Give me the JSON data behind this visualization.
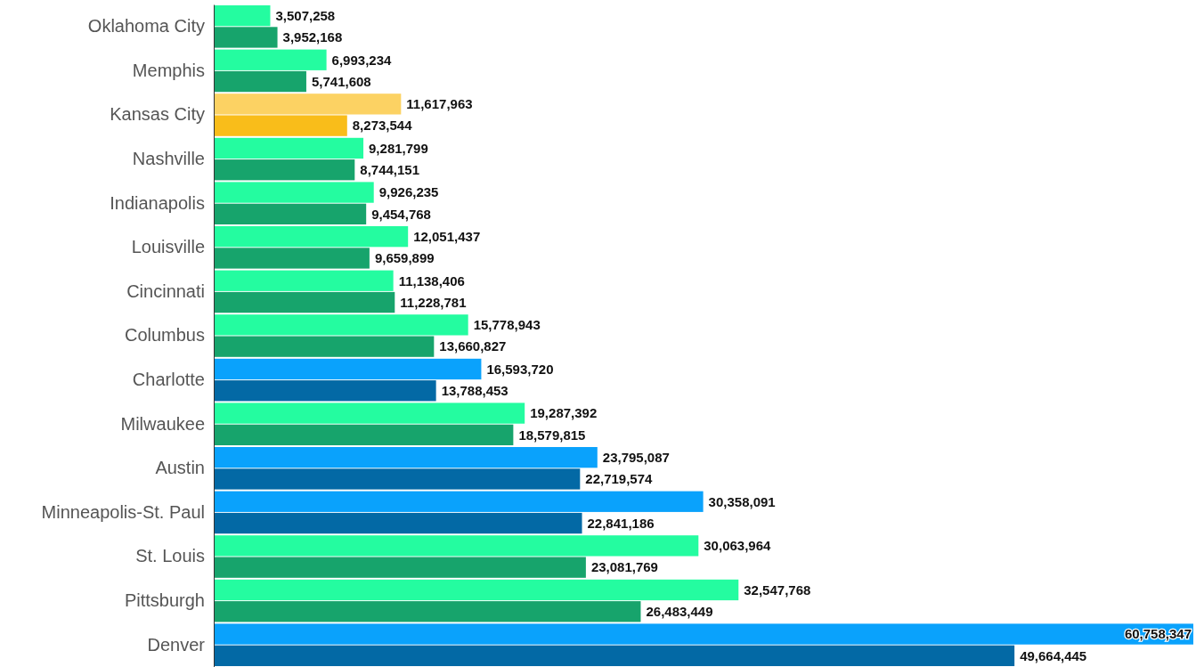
{
  "chart_data": {
    "type": "bar",
    "orientation": "horizontal",
    "categories": [
      "Oklahoma City",
      "Memphis",
      "Kansas City",
      "Nashville",
      "Indianapolis",
      "Louisville",
      "Cincinnati",
      "Columbus",
      "Charlotte",
      "Milwaukee",
      "Austin",
      "Minneapolis-St. Paul",
      "St. Louis",
      "Pittsburgh",
      "Denver"
    ],
    "series": [
      {
        "colors": [
          "#24fca0",
          "#24fca0",
          "#fcd263",
          "#24fca0",
          "#24fca0",
          "#24fca0",
          "#24fca0",
          "#24fca0",
          "#0aa2fc",
          "#24fca0",
          "#0aa2fc",
          "#0aa2fc",
          "#24fca0",
          "#24fca0",
          "#0aa2fc"
        ],
        "values": [
          3507258,
          6993234,
          11617963,
          9281799,
          9926235,
          12051437,
          11138406,
          15778943,
          16593720,
          19287392,
          23795087,
          30358091,
          30063964,
          32547768,
          60758347
        ],
        "value_labels": [
          "3,507,258",
          "6,993,234",
          "11,617,963",
          "9,281,799",
          "9,926,235",
          "12,051,437",
          "11,138,406",
          "15,778,943",
          "16,593,720",
          "19,287,392",
          "23,795,087",
          "30,358,091",
          "30,063,964",
          "32,547,768",
          "60,758,347"
        ]
      },
      {
        "colors": [
          "#17a46c",
          "#17a46c",
          "#f9bd1a",
          "#17a46c",
          "#17a46c",
          "#17a46c",
          "#17a46c",
          "#17a46c",
          "#0369a5",
          "#17a46c",
          "#0369a5",
          "#0369a5",
          "#17a46c",
          "#17a46c",
          "#0369a5"
        ],
        "values": [
          3952168,
          5741608,
          8273544,
          8744151,
          9454768,
          9659899,
          11228781,
          13660827,
          13788453,
          18579815,
          22719574,
          22841186,
          23081769,
          26483449,
          49664445
        ],
        "value_labels": [
          "3,952,168",
          "5,741,608",
          "8,273,544",
          "8,744,151",
          "9,454,768",
          "9,659,899",
          "11,228,781",
          "13,660,827",
          "13,788,453",
          "18,579,815",
          "22,719,574",
          "22,841,186",
          "23,081,769",
          "26,483,449",
          "49,664,445"
        ]
      }
    ]
  }
}
